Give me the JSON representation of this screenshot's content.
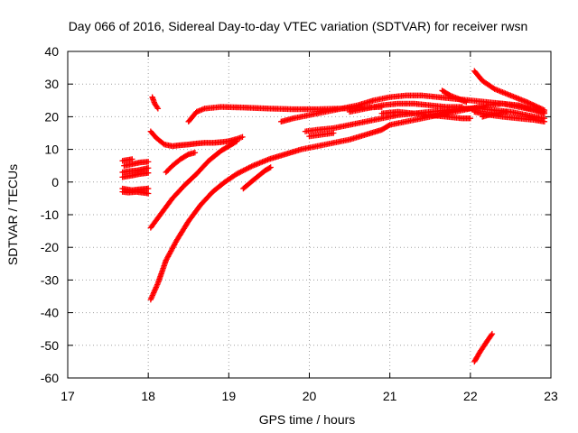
{
  "chart_data": {
    "type": "scatter",
    "title": "Day 066 of 2016, Sidereal Day-to-day VTEC variation (SDTVAR) for receiver rwsn",
    "xlabel": "GPS time / hours",
    "ylabel": "SDTVAR / TECUs",
    "xlim": [
      17,
      23
    ],
    "ylim": [
      -60,
      40
    ],
    "x_ticks": [
      17,
      18,
      19,
      20,
      21,
      22,
      23
    ],
    "y_ticks": [
      -60,
      -50,
      -40,
      -30,
      -20,
      -10,
      0,
      10,
      20,
      30,
      40
    ],
    "grid": true,
    "legend": "none",
    "marker": "plus",
    "colors": {
      "series": "#ff0000",
      "grid": "#a0a0a0",
      "axis": "#000000"
    },
    "series": [
      {
        "points": [
          [
            17.68,
            6.5
          ],
          [
            17.75,
            6.8
          ],
          [
            17.8,
            7.0
          ]
        ]
      },
      {
        "points": [
          [
            17.68,
            3.0
          ],
          [
            17.75,
            3.3
          ],
          [
            17.85,
            3.5
          ],
          [
            17.95,
            4.0
          ],
          [
            18.0,
            4.3
          ]
        ]
      },
      {
        "points": [
          [
            17.68,
            1.5
          ],
          [
            17.8,
            2.0
          ],
          [
            17.9,
            2.5
          ],
          [
            18.0,
            2.8
          ]
        ]
      },
      {
        "points": [
          [
            17.68,
            -3.0
          ],
          [
            17.75,
            -3.2
          ],
          [
            17.85,
            -3.0
          ],
          [
            17.95,
            -3.3
          ],
          [
            18.0,
            -3.5
          ]
        ]
      },
      {
        "points": [
          [
            17.68,
            -2.0
          ],
          [
            17.8,
            -2.5
          ],
          [
            17.9,
            -2.2
          ],
          [
            18.0,
            -2.0
          ]
        ]
      },
      {
        "points": [
          [
            17.7,
            5.0
          ],
          [
            17.8,
            5.5
          ],
          [
            17.9,
            6.0
          ],
          [
            18.0,
            6.2
          ]
        ]
      },
      {
        "points": [
          [
            18.05,
            26
          ],
          [
            18.08,
            24
          ],
          [
            18.12,
            22.5
          ]
        ]
      },
      {
        "points": [
          [
            18.03,
            15.5
          ],
          [
            18.1,
            13.5
          ],
          [
            18.2,
            11.5
          ],
          [
            18.3,
            11.0
          ],
          [
            18.4,
            11.3
          ],
          [
            18.5,
            11.5
          ],
          [
            18.6,
            11.8
          ],
          [
            18.7,
            12.0
          ],
          [
            18.8,
            12.0
          ],
          [
            18.9,
            12.2
          ],
          [
            19.0,
            12.5
          ],
          [
            19.1,
            13.2
          ],
          [
            19.17,
            13.8
          ]
        ]
      },
      {
        "points": [
          [
            18.22,
            3.0
          ],
          [
            18.3,
            5.0
          ],
          [
            18.4,
            7.0
          ],
          [
            18.5,
            8.5
          ],
          [
            18.58,
            9.0
          ]
        ]
      },
      {
        "points": [
          [
            18.03,
            -14
          ],
          [
            18.15,
            -10
          ],
          [
            18.3,
            -5
          ],
          [
            18.45,
            -1
          ],
          [
            18.6,
            2.5
          ],
          [
            18.75,
            6.5
          ],
          [
            18.9,
            9.5
          ],
          [
            19.0,
            11.0
          ],
          [
            19.1,
            12.5
          ]
        ]
      },
      {
        "points": [
          [
            18.03,
            -36
          ],
          [
            18.12,
            -31
          ],
          [
            18.22,
            -24
          ],
          [
            18.35,
            -18
          ],
          [
            18.5,
            -12
          ],
          [
            18.65,
            -7
          ],
          [
            18.8,
            -3
          ],
          [
            18.95,
            0
          ],
          [
            19.1,
            2.5
          ],
          [
            19.3,
            5.0
          ],
          [
            19.5,
            7.0
          ],
          [
            19.7,
            8.5
          ],
          [
            19.9,
            10.0
          ],
          [
            20.1,
            11.0
          ],
          [
            20.3,
            12.0
          ],
          [
            20.5,
            13.0
          ],
          [
            20.7,
            14.5
          ],
          [
            20.9,
            16.0
          ],
          [
            21.0,
            17.5
          ],
          [
            21.2,
            18.5
          ],
          [
            21.4,
            19.5
          ],
          [
            21.6,
            20.5
          ],
          [
            21.8,
            21.5
          ],
          [
            22.0,
            22.5
          ],
          [
            22.2,
            23.5
          ],
          [
            22.4,
            24.0
          ],
          [
            22.6,
            23.0
          ],
          [
            22.8,
            22.0
          ],
          [
            22.92,
            21.5
          ]
        ]
      },
      {
        "points": [
          [
            18.5,
            18.5
          ],
          [
            18.6,
            21.5
          ],
          [
            18.7,
            22.5
          ],
          [
            18.9,
            23.0
          ],
          [
            19.2,
            22.8
          ],
          [
            19.5,
            22.5
          ],
          [
            19.8,
            22.3
          ],
          [
            20.1,
            22.3
          ],
          [
            20.4,
            22.5
          ],
          [
            20.7,
            22.8
          ],
          [
            20.9,
            23.0
          ]
        ]
      },
      {
        "points": [
          [
            19.18,
            -2
          ],
          [
            19.3,
            0.5
          ],
          [
            19.45,
            3.5
          ],
          [
            19.52,
            4.5
          ]
        ]
      },
      {
        "points": [
          [
            19.65,
            18.5
          ],
          [
            19.8,
            19.5
          ],
          [
            20.0,
            20.5
          ],
          [
            20.2,
            21.5
          ],
          [
            20.4,
            22.5
          ],
          [
            20.6,
            23.5
          ],
          [
            20.8,
            25.0
          ],
          [
            21.0,
            26.0
          ],
          [
            21.2,
            26.5
          ],
          [
            21.4,
            26.5
          ],
          [
            21.6,
            26.0
          ],
          [
            21.8,
            25.5
          ],
          [
            22.0,
            25.0
          ],
          [
            22.2,
            24.5
          ],
          [
            22.4,
            24.0
          ],
          [
            22.6,
            23.5
          ],
          [
            22.8,
            22.0
          ],
          [
            22.92,
            21.0
          ]
        ]
      },
      {
        "points": [
          [
            19.95,
            15.5
          ],
          [
            20.1,
            16.0
          ],
          [
            20.3,
            16.5
          ],
          [
            20.5,
            17.5
          ],
          [
            20.7,
            18.5
          ],
          [
            20.9,
            19.5
          ],
          [
            21.1,
            20.5
          ],
          [
            21.3,
            21.0
          ],
          [
            21.5,
            21.5
          ],
          [
            21.7,
            22.0
          ],
          [
            21.9,
            22.5
          ],
          [
            22.1,
            22.5
          ],
          [
            22.3,
            22.0
          ],
          [
            22.5,
            21.5
          ],
          [
            22.7,
            20.5
          ],
          [
            22.92,
            19.5
          ]
        ]
      },
      {
        "points": [
          [
            20.0,
            14.0
          ],
          [
            20.15,
            14.5
          ],
          [
            20.3,
            15.0
          ]
        ]
      },
      {
        "points": [
          [
            20.5,
            21.5
          ],
          [
            20.7,
            22.5
          ],
          [
            20.9,
            23.5
          ],
          [
            21.1,
            24.0
          ],
          [
            21.3,
            24.0
          ],
          [
            21.5,
            23.5
          ],
          [
            21.7,
            23.0
          ],
          [
            21.9,
            23.0
          ]
        ]
      },
      {
        "points": [
          [
            20.9,
            21.0
          ],
          [
            21.1,
            21.5
          ],
          [
            21.3,
            21.0
          ],
          [
            21.5,
            20.5
          ],
          [
            21.7,
            20.0
          ],
          [
            21.9,
            19.5
          ],
          [
            22.0,
            19.5
          ]
        ]
      },
      {
        "points": [
          [
            21.65,
            28.0
          ],
          [
            21.75,
            26.5
          ],
          [
            21.85,
            25.5
          ],
          [
            21.95,
            24.5
          ]
        ]
      },
      {
        "points": [
          [
            22.05,
            34
          ],
          [
            22.15,
            31
          ],
          [
            22.3,
            28.5
          ],
          [
            22.5,
            26.5
          ],
          [
            22.7,
            24.5
          ],
          [
            22.92,
            22.0
          ]
        ]
      },
      {
        "points": [
          [
            22.05,
            21.5
          ],
          [
            22.15,
            21.0
          ],
          [
            22.25,
            20.5
          ],
          [
            22.4,
            20.0
          ],
          [
            22.6,
            19.5
          ],
          [
            22.8,
            19.0
          ],
          [
            22.92,
            18.5
          ]
        ]
      },
      {
        "points": [
          [
            22.15,
            20.0
          ],
          [
            22.3,
            21.0
          ],
          [
            22.45,
            21.5
          ]
        ]
      },
      {
        "points": [
          [
            22.05,
            -55
          ],
          [
            22.12,
            -52
          ],
          [
            22.2,
            -49
          ],
          [
            22.27,
            -46.5
          ]
        ]
      }
    ]
  }
}
